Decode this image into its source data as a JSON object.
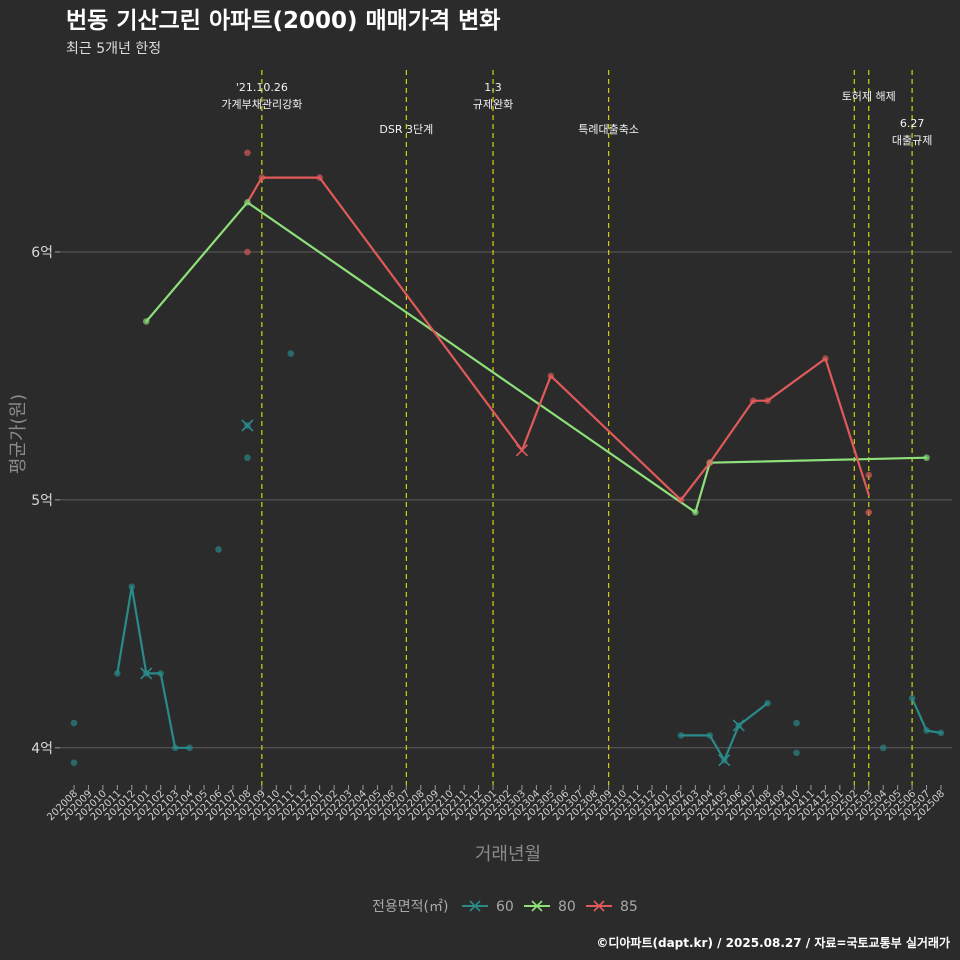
{
  "chart_data": {
    "type": "line",
    "title": "번동 기산그린 아파트(2000) 매매가격 변화",
    "subtitle": "최근 5개년 한정",
    "xlabel": "거래년월",
    "ylabel": "평균가(원)",
    "caption": "©디아파트(dapt.kr) / 2025.08.27 / 자료=국토교통부 실거래가",
    "legend_title": "전용면적(㎡)",
    "ylim": [
      38500,
      67500
    ],
    "yticks": [
      {
        "value": 40000,
        "label": "4억"
      },
      {
        "value": 50000,
        "label": "5억"
      },
      {
        "value": 60000,
        "label": "6억"
      }
    ],
    "categories": [
      "202008",
      "202009",
      "202010",
      "202011",
      "202012",
      "202101",
      "202102",
      "202103",
      "202104",
      "202105",
      "202106",
      "202107",
      "202108",
      "202109",
      "202110",
      "202111",
      "202112",
      "202201",
      "202202",
      "202203",
      "202204",
      "202205",
      "202206",
      "202207",
      "202208",
      "202209",
      "202210",
      "202211",
      "202212",
      "202301",
      "202302",
      "202303",
      "202304",
      "202305",
      "202306",
      "202307",
      "202308",
      "202309",
      "202310",
      "202311",
      "202312",
      "202401",
      "202402",
      "202403",
      "202404",
      "202405",
      "202406",
      "202407",
      "202408",
      "202409",
      "202410",
      "202411",
      "202412",
      "202501",
      "202502",
      "202503",
      "202504",
      "202505",
      "202506",
      "202507",
      "202508"
    ],
    "events": [
      {
        "month": "202109",
        "lines": [
          "'21.10.26",
          "가계부채관리강화"
        ],
        "row": 1
      },
      {
        "month": "202207",
        "lines": [
          "DSR 3단계"
        ],
        "row": 2
      },
      {
        "month": "202301",
        "lines": [
          "1.3",
          "규제완화"
        ],
        "row": 1
      },
      {
        "month": "202309",
        "lines": [
          "특례대출축소"
        ],
        "row": 2
      },
      {
        "month": "202502",
        "lines": [],
        "row": 1
      },
      {
        "month": "202503",
        "lines": [
          "토허제 해제"
        ],
        "row": 0
      },
      {
        "month": "202506",
        "lines": [
          "6.27",
          "대출규제"
        ],
        "row": 3
      }
    ],
    "series": [
      {
        "name": "60",
        "color": "#2a8a8a",
        "line": [
          {
            "x": "202011",
            "y": 43000
          },
          {
            "x": "202012",
            "y": 46500
          },
          {
            "x": "202101",
            "y": 43000
          },
          {
            "x": "202102",
            "y": 43000
          },
          {
            "x": "202103",
            "y": 40000
          },
          {
            "x": "202104",
            "y": 40000
          },
          null,
          {
            "x": "202402",
            "y": 40500
          },
          {
            "x": "202404",
            "y": 40500
          },
          {
            "x": "202405",
            "y": 39500
          },
          {
            "x": "202406",
            "y": 40900
          },
          {
            "x": "202408",
            "y": 41800
          },
          null,
          {
            "x": "202506",
            "y": 42000
          },
          {
            "x": "202507",
            "y": 40700
          },
          {
            "x": "202508",
            "y": 40600
          }
        ],
        "points": [
          {
            "x": "202008",
            "y": 41000
          },
          {
            "x": "202008",
            "y": 39400
          },
          {
            "x": "202011",
            "y": 43000
          },
          {
            "x": "202012",
            "y": 46500
          },
          {
            "x": "202101",
            "y": 43000
          },
          {
            "x": "202102",
            "y": 43000
          },
          {
            "x": "202103",
            "y": 40000
          },
          {
            "x": "202104",
            "y": 40000
          },
          {
            "x": "202106",
            "y": 48000
          },
          {
            "x": "202108",
            "y": 53000
          },
          {
            "x": "202108",
            "y": 51700
          },
          {
            "x": "202111",
            "y": 55900
          },
          {
            "x": "202402",
            "y": 40500
          },
          {
            "x": "202404",
            "y": 40500
          },
          {
            "x": "202405",
            "y": 39500
          },
          {
            "x": "202406",
            "y": 40900
          },
          {
            "x": "202408",
            "y": 41800
          },
          {
            "x": "202410",
            "y": 41000
          },
          {
            "x": "202410",
            "y": 39800
          },
          {
            "x": "202504",
            "y": 40000
          },
          {
            "x": "202506",
            "y": 42000
          },
          {
            "x": "202507",
            "y": 40700
          },
          {
            "x": "202508",
            "y": 40600
          }
        ],
        "crosses": [
          {
            "x": "202101",
            "y": 43000
          },
          {
            "x": "202108",
            "y": 53000
          },
          {
            "x": "202405",
            "y": 39500
          },
          {
            "x": "202406",
            "y": 40900
          }
        ]
      },
      {
        "name": "80",
        "color": "#8ee07a",
        "line": [
          {
            "x": "202101",
            "y": 57200
          },
          {
            "x": "202108",
            "y": 62000
          },
          {
            "x": "202403",
            "y": 49500
          },
          {
            "x": "202404",
            "y": 51500
          },
          {
            "x": "202507",
            "y": 51700
          }
        ],
        "points": [
          {
            "x": "202101",
            "y": 57200
          },
          {
            "x": "202108",
            "y": 62000
          },
          {
            "x": "202403",
            "y": 49500
          },
          {
            "x": "202404",
            "y": 51500
          },
          {
            "x": "202507",
            "y": 51700
          }
        ],
        "crosses": []
      },
      {
        "name": "85",
        "color": "#e05a5a",
        "line": [
          {
            "x": "202108",
            "y": 62000
          },
          {
            "x": "202109",
            "y": 63000
          },
          {
            "x": "202201",
            "y": 63000
          },
          {
            "x": "202303",
            "y": 52000
          },
          {
            "x": "202305",
            "y": 55000
          },
          {
            "x": "202402",
            "y": 50000
          },
          {
            "x": "202404",
            "y": 51500
          },
          {
            "x": "202407",
            "y": 54000
          },
          {
            "x": "202408",
            "y": 54000
          },
          {
            "x": "202412",
            "y": 55700
          },
          {
            "x": "202503",
            "y": 50200
          }
        ],
        "points": [
          {
            "x": "202108",
            "y": 64000
          },
          {
            "x": "202108",
            "y": 60000
          },
          {
            "x": "202109",
            "y": 63000
          },
          {
            "x": "202201",
            "y": 63000
          },
          {
            "x": "202305",
            "y": 55000
          },
          {
            "x": "202402",
            "y": 50000
          },
          {
            "x": "202404",
            "y": 51500
          },
          {
            "x": "202407",
            "y": 54000
          },
          {
            "x": "202408",
            "y": 54000
          },
          {
            "x": "202412",
            "y": 55700
          },
          {
            "x": "202503",
            "y": 51000
          },
          {
            "x": "202503",
            "y": 49500
          }
        ],
        "crosses": [
          {
            "x": "202303",
            "y": 52000
          }
        ]
      }
    ]
  }
}
